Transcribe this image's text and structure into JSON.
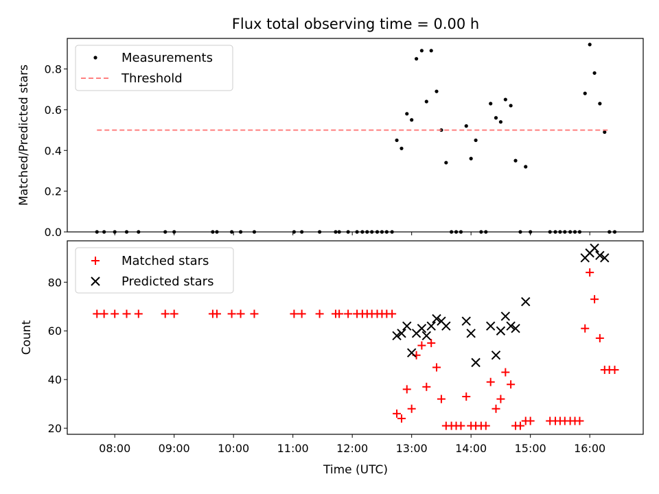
{
  "chart_data": [
    {
      "type": "scatter",
      "title": "Flux total observing time = 0.00 h",
      "ylabel": "Matched/Predicted stars",
      "xlabel": "",
      "x_unit": "hours (UTC)",
      "xlim": [
        7.2,
        16.9
      ],
      "ylim": [
        0,
        0.95
      ],
      "yticks": [
        0.0,
        0.2,
        0.4,
        0.6,
        0.8
      ],
      "ytick_labels": [
        "0.0",
        "0.2",
        "0.4",
        "0.6",
        "0.8"
      ],
      "legend": {
        "position": "top-left",
        "entries": [
          "Measurements",
          "Threshold"
        ]
      },
      "series": [
        {
          "name": "Measurements",
          "color": "#000000",
          "marker": "dot",
          "points": [
            [
              7.7,
              0
            ],
            [
              7.82,
              0
            ],
            [
              8.0,
              0
            ],
            [
              8.2,
              0
            ],
            [
              8.4,
              0
            ],
            [
              8.85,
              0
            ],
            [
              9.0,
              0
            ],
            [
              9.65,
              0
            ],
            [
              9.72,
              0
            ],
            [
              9.97,
              0
            ],
            [
              10.12,
              0
            ],
            [
              10.35,
              0
            ],
            [
              11.02,
              0
            ],
            [
              11.15,
              0
            ],
            [
              11.45,
              0
            ],
            [
              11.72,
              0
            ],
            [
              11.78,
              0
            ],
            [
              11.93,
              0
            ],
            [
              12.08,
              0
            ],
            [
              12.17,
              0
            ],
            [
              12.25,
              0
            ],
            [
              12.33,
              0
            ],
            [
              12.42,
              0
            ],
            [
              12.5,
              0
            ],
            [
              12.58,
              0
            ],
            [
              12.67,
              0
            ],
            [
              12.75,
              0.45
            ],
            [
              12.83,
              0.41
            ],
            [
              12.92,
              0.58
            ],
            [
              13.0,
              0.55
            ],
            [
              13.08,
              0.85
            ],
            [
              13.17,
              0.89
            ],
            [
              13.25,
              0.64
            ],
            [
              13.33,
              0.89
            ],
            [
              13.42,
              0.69
            ],
            [
              13.5,
              0.5
            ],
            [
              13.58,
              0.34
            ],
            [
              13.67,
              0
            ],
            [
              13.75,
              0
            ],
            [
              13.83,
              0
            ],
            [
              13.92,
              0.52
            ],
            [
              14.0,
              0.36
            ],
            [
              14.08,
              0.45
            ],
            [
              14.17,
              0
            ],
            [
              14.25,
              0
            ],
            [
              14.33,
              0.63
            ],
            [
              14.42,
              0.56
            ],
            [
              14.5,
              0.54
            ],
            [
              14.58,
              0.65
            ],
            [
              14.67,
              0.62
            ],
            [
              14.75,
              0.35
            ],
            [
              14.83,
              0
            ],
            [
              14.92,
              0.32
            ],
            [
              15.0,
              0
            ],
            [
              15.33,
              0
            ],
            [
              15.42,
              0
            ],
            [
              15.5,
              0
            ],
            [
              15.58,
              0
            ],
            [
              15.67,
              0
            ],
            [
              15.75,
              0
            ],
            [
              15.83,
              0
            ],
            [
              15.92,
              0.68
            ],
            [
              16.0,
              0.92
            ],
            [
              16.08,
              0.78
            ],
            [
              16.17,
              0.63
            ],
            [
              16.25,
              0.49
            ],
            [
              16.33,
              0
            ],
            [
              16.42,
              0
            ]
          ]
        },
        {
          "name": "Threshold",
          "color": "#ff7f7f",
          "style": "dashed",
          "points": [
            [
              7.7,
              0.5
            ],
            [
              16.33,
              0.5
            ]
          ]
        }
      ]
    },
    {
      "type": "scatter",
      "title": "",
      "ylabel": "Count",
      "xlabel": "Time (UTC)",
      "x_unit": "hours (UTC)",
      "xlim": [
        7.2,
        16.9
      ],
      "ylim": [
        17.5,
        97.0
      ],
      "yticks": [
        20,
        40,
        60,
        80
      ],
      "ytick_labels": [
        "20",
        "40",
        "60",
        "80"
      ],
      "xticks": [
        8,
        9,
        10,
        11,
        12,
        13,
        14,
        15,
        16
      ],
      "xtick_labels": [
        "08:00",
        "09:00",
        "10:00",
        "11:00",
        "12:00",
        "13:00",
        "14:00",
        "15:00",
        "16:00"
      ],
      "legend": {
        "position": "top-left",
        "entries": [
          "Matched stars",
          "Predicted stars"
        ]
      },
      "series": [
        {
          "name": "Matched stars",
          "color": "#ff0000",
          "marker": "plus",
          "points": [
            [
              7.7,
              67
            ],
            [
              7.82,
              67
            ],
            [
              8.0,
              67
            ],
            [
              8.2,
              67
            ],
            [
              8.4,
              67
            ],
            [
              8.85,
              67
            ],
            [
              9.0,
              67
            ],
            [
              9.65,
              67
            ],
            [
              9.72,
              67
            ],
            [
              9.97,
              67
            ],
            [
              10.12,
              67
            ],
            [
              10.35,
              67
            ],
            [
              11.02,
              67
            ],
            [
              11.15,
              67
            ],
            [
              11.45,
              67
            ],
            [
              11.72,
              67
            ],
            [
              11.78,
              67
            ],
            [
              11.93,
              67
            ],
            [
              12.08,
              67
            ],
            [
              12.17,
              67
            ],
            [
              12.25,
              67
            ],
            [
              12.33,
              67
            ],
            [
              12.42,
              67
            ],
            [
              12.5,
              67
            ],
            [
              12.58,
              67
            ],
            [
              12.67,
              67
            ],
            [
              12.75,
              26
            ],
            [
              12.83,
              24
            ],
            [
              12.92,
              36
            ],
            [
              13.0,
              28
            ],
            [
              13.08,
              50
            ],
            [
              13.17,
              54
            ],
            [
              13.25,
              37
            ],
            [
              13.33,
              55
            ],
            [
              13.42,
              45
            ],
            [
              13.5,
              32
            ],
            [
              13.58,
              21
            ],
            [
              13.67,
              21
            ],
            [
              13.75,
              21
            ],
            [
              13.83,
              21
            ],
            [
              13.92,
              33
            ],
            [
              14.0,
              21
            ],
            [
              14.08,
              21
            ],
            [
              14.17,
              21
            ],
            [
              14.25,
              21
            ],
            [
              14.33,
              39
            ],
            [
              14.42,
              28
            ],
            [
              14.5,
              32
            ],
            [
              14.58,
              43
            ],
            [
              14.67,
              38
            ],
            [
              14.75,
              21
            ],
            [
              14.83,
              21
            ],
            [
              14.92,
              23
            ],
            [
              15.0,
              23
            ],
            [
              15.33,
              23
            ],
            [
              15.42,
              23
            ],
            [
              15.5,
              23
            ],
            [
              15.58,
              23
            ],
            [
              15.67,
              23
            ],
            [
              15.75,
              23
            ],
            [
              15.83,
              23
            ],
            [
              15.92,
              61
            ],
            [
              16.0,
              84
            ],
            [
              16.08,
              73
            ],
            [
              16.17,
              57
            ],
            [
              16.25,
              44
            ],
            [
              16.33,
              44
            ],
            [
              16.42,
              44
            ]
          ]
        },
        {
          "name": "Predicted stars",
          "color": "#000000",
          "marker": "x",
          "points": [
            [
              12.75,
              58
            ],
            [
              12.83,
              59
            ],
            [
              12.92,
              62
            ],
            [
              13.0,
              51
            ],
            [
              13.08,
              59
            ],
            [
              13.17,
              61
            ],
            [
              13.25,
              58
            ],
            [
              13.33,
              62
            ],
            [
              13.42,
              65
            ],
            [
              13.5,
              64
            ],
            [
              13.58,
              62
            ],
            [
              13.92,
              64
            ],
            [
              14.0,
              59
            ],
            [
              14.08,
              47
            ],
            [
              14.33,
              62
            ],
            [
              14.42,
              50
            ],
            [
              14.5,
              60
            ],
            [
              14.58,
              66
            ],
            [
              14.67,
              62
            ],
            [
              14.75,
              61
            ],
            [
              14.92,
              72
            ],
            [
              15.92,
              90
            ],
            [
              16.0,
              92
            ],
            [
              16.08,
              94
            ],
            [
              16.17,
              91
            ],
            [
              16.25,
              90
            ]
          ]
        }
      ]
    }
  ]
}
